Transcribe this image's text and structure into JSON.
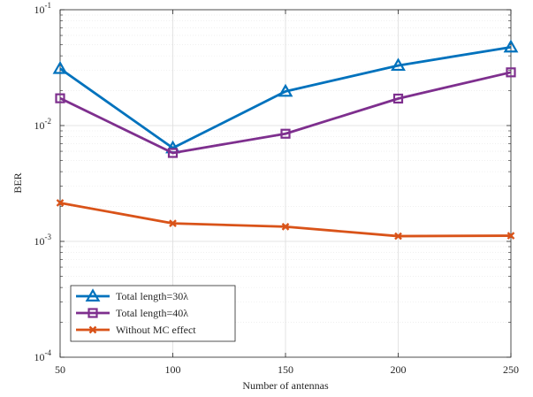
{
  "chart_data": {
    "type": "line",
    "xlabel": "Number of antennas",
    "ylabel": "BER",
    "yscale": "log",
    "grid": true,
    "legend_position": "bottom-left",
    "x": [
      50,
      100,
      150,
      200,
      250
    ],
    "x_ticks": [
      "50",
      "100",
      "150",
      "200",
      "250"
    ],
    "y_ticks": [
      {
        "value": 0.1,
        "base": "10",
        "exp": "-1"
      },
      {
        "value": 0.01,
        "base": "10",
        "exp": "-2"
      },
      {
        "value": 0.001,
        "base": "10",
        "exp": "-3"
      },
      {
        "value": 0.0001,
        "base": "10",
        "exp": "-4"
      }
    ],
    "xlim": [
      50,
      250
    ],
    "ylim": [
      0.0001,
      0.1
    ],
    "series": [
      {
        "name": "Total length=30λ",
        "color": "#0072BD",
        "marker": "triangle",
        "values": [
          0.031,
          0.0064,
          0.0197,
          0.033,
          0.0475
        ]
      },
      {
        "name": "Total length=40λ",
        "color": "#7E2F8E",
        "marker": "square",
        "values": [
          0.0172,
          0.0058,
          0.0085,
          0.0171,
          0.0288
        ]
      },
      {
        "name": "Without MC effect",
        "color": "#D95319",
        "marker": "x",
        "values": [
          0.00215,
          0.00143,
          0.00134,
          0.00111,
          0.00112
        ]
      }
    ]
  }
}
